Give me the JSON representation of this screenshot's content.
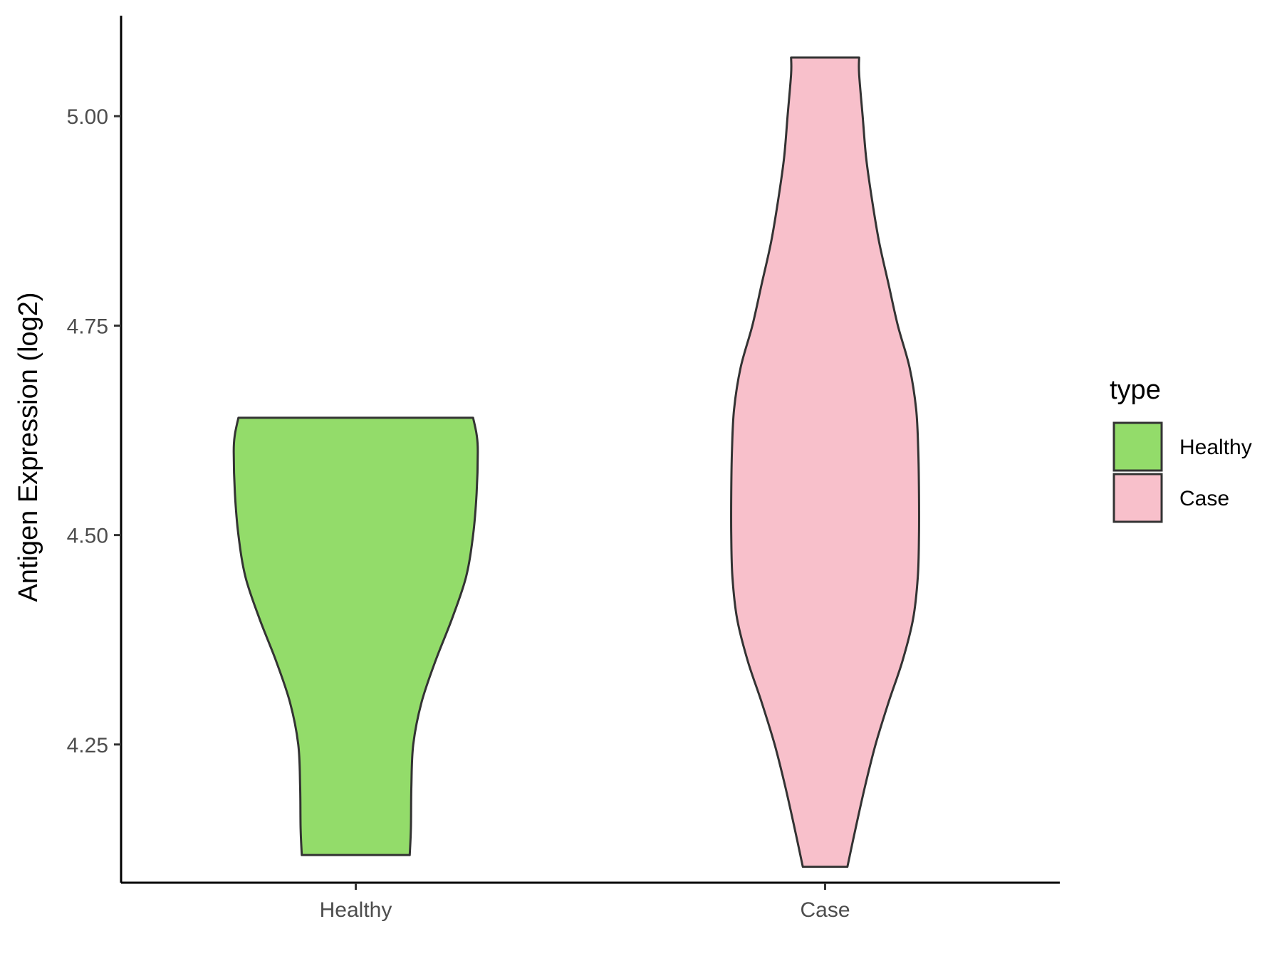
{
  "chart_data": {
    "type": "violin",
    "title": "",
    "xlabel": "",
    "ylabel": "Antigen Expression (log2)",
    "ylim": [
      4.085,
      5.12
    ],
    "yticks": [
      4.25,
      4.5,
      4.75,
      5.0
    ],
    "ytick_labels": [
      "4.25",
      "4.50",
      "4.75",
      "5.00"
    ],
    "categories": [
      "Healthy",
      "Case"
    ],
    "grid": false,
    "legend": {
      "title": "type",
      "placement": "right",
      "entries": [
        {
          "label": "Healthy",
          "color": "#93DC6A"
        },
        {
          "label": "Case",
          "color": "#F8C0CB"
        }
      ]
    },
    "series": [
      {
        "category": "Healthy",
        "color": "#93DC6A",
        "min": 4.118,
        "max": 4.64,
        "density": [
          [
            4.118,
            0.23
          ],
          [
            4.15,
            0.235
          ],
          [
            4.2,
            0.237
          ],
          [
            4.25,
            0.245
          ],
          [
            4.3,
            0.28
          ],
          [
            4.35,
            0.34
          ],
          [
            4.4,
            0.41
          ],
          [
            4.45,
            0.47
          ],
          [
            4.5,
            0.5
          ],
          [
            4.55,
            0.515
          ],
          [
            4.6,
            0.52
          ],
          [
            4.62,
            0.515
          ],
          [
            4.64,
            0.5
          ]
        ]
      },
      {
        "category": "Case",
        "color": "#F8C0CB",
        "min": 4.104,
        "max": 5.07,
        "density": [
          [
            4.104,
            0.095
          ],
          [
            4.15,
            0.13
          ],
          [
            4.2,
            0.17
          ],
          [
            4.25,
            0.215
          ],
          [
            4.3,
            0.27
          ],
          [
            4.35,
            0.33
          ],
          [
            4.4,
            0.375
          ],
          [
            4.45,
            0.395
          ],
          [
            4.5,
            0.4
          ],
          [
            4.55,
            0.4
          ],
          [
            4.6,
            0.397
          ],
          [
            4.65,
            0.388
          ],
          [
            4.7,
            0.36
          ],
          [
            4.75,
            0.31
          ],
          [
            4.8,
            0.27
          ],
          [
            4.85,
            0.23
          ],
          [
            4.9,
            0.2
          ],
          [
            4.95,
            0.175
          ],
          [
            5.0,
            0.16
          ],
          [
            5.05,
            0.145
          ],
          [
            5.07,
            0.145
          ]
        ]
      }
    ]
  }
}
